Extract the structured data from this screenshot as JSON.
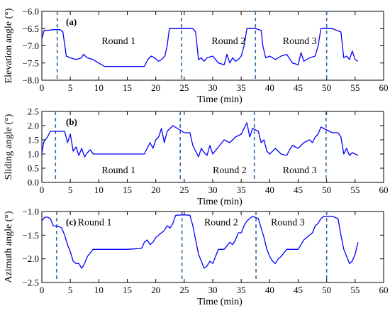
{
  "chart_data": [
    {
      "type": "line",
      "panel_label": "(a)",
      "xlabel": "Time (min)",
      "ylabel": "Elevation angle (°)",
      "xlim": [
        0,
        60
      ],
      "ylim": [
        -8.0,
        -6.0
      ],
      "xticks": [
        0,
        5,
        10,
        15,
        20,
        25,
        30,
        35,
        40,
        45,
        50,
        55,
        60
      ],
      "yticks": [
        -8.0,
        -7.5,
        -7.0,
        -6.5,
        -6.0
      ],
      "ytick_labels": [
        "−8.0",
        "−7.5",
        "−7.0",
        "−6.5",
        "−6.0"
      ],
      "line_color": "#0000ff",
      "marker_color": "#2e6da4",
      "markers_x": [
        2.7,
        24.5,
        37.5,
        50.0
      ],
      "annotations": [
        {
          "text": "Round 1",
          "x": 10.5,
          "y": -6.85
        },
        {
          "text": "Round 2",
          "x": 29.8,
          "y": -6.85
        },
        {
          "text": "Round 3",
          "x": 42.3,
          "y": -6.85
        }
      ],
      "series": [
        {
          "x": [
            0,
            0.4,
            1.2,
            2.0,
            3.2,
            3.7,
            4.3,
            5.0,
            6.0,
            7.0,
            7.3,
            8.0,
            9.0,
            10.0,
            11.0,
            15.0,
            18.0,
            18.6,
            19.2,
            19.8,
            20.5,
            21.0,
            21.6,
            22.0,
            22.4,
            23.5,
            25.0,
            26.5,
            27.0,
            27.5,
            28.0,
            28.5,
            29.0,
            30.0,
            31.0,
            32.0,
            32.5,
            33.0,
            33.5,
            34.0,
            34.5,
            35.0,
            35.5,
            36.0,
            37.5,
            38.5,
            38.8,
            39.3,
            40.0,
            41.0,
            42.0,
            43.0,
            44.0,
            45.0,
            45.5,
            46.0,
            47.0,
            48.0,
            48.5,
            49.0,
            51.0,
            52.5,
            53.0,
            53.5,
            54.0,
            54.5,
            55.0,
            55.5
          ],
          "y": [
            -6.8,
            -6.55,
            -6.55,
            -6.53,
            -6.53,
            -6.6,
            -7.3,
            -7.35,
            -7.4,
            -7.35,
            -7.25,
            -7.35,
            -7.4,
            -7.5,
            -7.6,
            -7.6,
            -7.6,
            -7.4,
            -7.3,
            -7.35,
            -7.45,
            -7.4,
            -7.3,
            -7.0,
            -6.5,
            -6.5,
            -6.5,
            -6.5,
            -6.6,
            -7.4,
            -7.35,
            -7.45,
            -7.35,
            -7.3,
            -7.5,
            -7.55,
            -7.25,
            -7.5,
            -7.35,
            -7.45,
            -7.4,
            -7.3,
            -7.0,
            -6.5,
            -6.5,
            -6.55,
            -7.0,
            -7.35,
            -7.3,
            -7.4,
            -7.3,
            -7.25,
            -7.5,
            -7.55,
            -7.2,
            -7.45,
            -7.35,
            -7.3,
            -7.0,
            -6.5,
            -6.5,
            -6.6,
            -7.35,
            -7.3,
            -7.4,
            -7.15,
            -7.4,
            -7.45
          ]
        }
      ]
    },
    {
      "type": "line",
      "panel_label": "(b)",
      "xlabel": "Time (min)",
      "ylabel": "Sliding angle (°)",
      "xlim": [
        0,
        60
      ],
      "ylim": [
        0.0,
        2.5
      ],
      "xticks": [
        0,
        5,
        10,
        15,
        20,
        25,
        30,
        35,
        40,
        45,
        50,
        55,
        60
      ],
      "yticks": [
        0.0,
        0.5,
        1.0,
        1.5,
        2.0,
        2.5
      ],
      "ytick_labels": [
        "0.0",
        "0.5",
        "1.0",
        "1.5",
        "2.0",
        "2.5"
      ],
      "line_color": "#0000ff",
      "marker_color": "#2e6da4",
      "markers_x": [
        2.4,
        24.3,
        37.3,
        49.9
      ],
      "annotations": [
        {
          "text": "Round 1",
          "x": 10.5,
          "y": 0.45
        },
        {
          "text": "Round 2",
          "x": 30.0,
          "y": 0.45
        },
        {
          "text": "Round 3",
          "x": 42.3,
          "y": 0.45
        }
      ],
      "series": [
        {
          "x": [
            0,
            0.3,
            0.6,
            1.0,
            1.5,
            2.0,
            2.5,
            3.0,
            3.5,
            4.0,
            4.5,
            5.0,
            5.5,
            6.0,
            6.5,
            7.0,
            7.5,
            8.0,
            8.5,
            9.0,
            10.0,
            15.0,
            18.0,
            18.5,
            19.0,
            19.5,
            20.0,
            20.5,
            21.0,
            21.5,
            22.0,
            22.5,
            23.0,
            25.0,
            26.0,
            26.5,
            27.0,
            27.5,
            28.0,
            28.5,
            29.0,
            29.5,
            30.0,
            31.0,
            32.0,
            33.0,
            34.0,
            35.0,
            35.5,
            36.0,
            36.5,
            37.0,
            38.0,
            38.5,
            39.0,
            39.5,
            40.0,
            41.0,
            42.0,
            43.0,
            43.5,
            44.0,
            45.0,
            46.0,
            47.0,
            47.5,
            48.0,
            48.5,
            49.0,
            51.0,
            52.0,
            52.5,
            53.0,
            53.5,
            54.0,
            54.5,
            55.0,
            55.5
          ],
          "y": [
            1.0,
            1.4,
            1.5,
            1.6,
            1.8,
            1.8,
            1.8,
            1.8,
            1.8,
            1.8,
            1.4,
            1.7,
            1.1,
            1.25,
            0.95,
            1.2,
            0.9,
            1.05,
            1.15,
            1.0,
            1.0,
            1.0,
            1.0,
            1.2,
            1.4,
            1.2,
            1.5,
            1.6,
            1.9,
            1.4,
            1.8,
            1.9,
            2.0,
            1.75,
            1.75,
            1.3,
            1.1,
            0.9,
            1.2,
            1.05,
            0.95,
            1.3,
            1.0,
            1.25,
            1.5,
            1.4,
            1.6,
            1.7,
            1.9,
            2.1,
            1.6,
            1.9,
            1.8,
            1.4,
            1.5,
            1.1,
            1.0,
            1.2,
            1.0,
            0.95,
            1.15,
            1.3,
            1.2,
            1.4,
            1.5,
            1.4,
            1.6,
            1.7,
            1.95,
            1.75,
            1.75,
            1.6,
            1.0,
            1.2,
            0.95,
            1.05,
            1.0,
            0.95
          ]
        }
      ]
    },
    {
      "type": "line",
      "panel_label": "(c)",
      "xlabel": "Time (min)",
      "ylabel": "Azimuth angle (°)",
      "xlim": [
        0,
        60
      ],
      "ylim": [
        -2.5,
        -1.0
      ],
      "xticks": [
        0,
        5,
        10,
        15,
        20,
        25,
        30,
        35,
        40,
        45,
        50,
        55,
        60
      ],
      "yticks": [
        -2.5,
        -2.0,
        -1.5,
        -1.0
      ],
      "ytick_labels": [
        "−2.5",
        "−2.0",
        "−1.5",
        "−1.0"
      ],
      "line_color": "#0000ff",
      "marker_color": "#2e6da4",
      "markers_x": [
        2.6,
        24.6,
        37.6,
        50.0
      ],
      "annotations": [
        {
          "text": "Round 1",
          "x": 6.3,
          "y": -1.22
        },
        {
          "text": "Round 2",
          "x": 28.5,
          "y": -1.22
        },
        {
          "text": "Round 3",
          "x": 40.2,
          "y": -1.22
        }
      ],
      "series": [
        {
          "x": [
            0,
            0.5,
            1.0,
            1.5,
            2.0,
            3.0,
            3.5,
            4.0,
            4.5,
            5.0,
            5.5,
            6.0,
            6.5,
            7.0,
            7.5,
            8.0,
            9.0,
            10.0,
            11.0,
            15.0,
            17.5,
            18.0,
            18.5,
            19.0,
            19.5,
            20.0,
            20.5,
            21.0,
            21.5,
            22.0,
            22.5,
            23.0,
            23.5,
            25.0,
            26.0,
            26.5,
            27.0,
            27.5,
            28.0,
            28.5,
            29.0,
            29.5,
            30.0,
            30.5,
            31.0,
            32.0,
            33.0,
            33.5,
            34.0,
            34.5,
            35.0,
            35.5,
            36.0,
            37.0,
            38.0,
            38.5,
            39.0,
            39.5,
            40.0,
            40.5,
            41.0,
            41.5,
            42.0,
            43.0,
            44.0,
            45.0,
            46.0,
            47.0,
            47.5,
            48.0,
            48.5,
            49.0,
            49.5,
            51.0,
            52.0,
            52.5,
            53.0,
            53.5,
            54.0,
            54.5,
            55.0,
            55.5
          ],
          "y": [
            -1.2,
            -1.12,
            -1.12,
            -1.15,
            -1.3,
            -1.32,
            -1.35,
            -1.5,
            -1.7,
            -1.85,
            -2.05,
            -2.1,
            -2.1,
            -2.2,
            -2.1,
            -1.95,
            -1.8,
            -1.8,
            -1.8,
            -1.8,
            -1.78,
            -1.65,
            -1.6,
            -1.7,
            -1.65,
            -1.55,
            -1.5,
            -1.45,
            -1.4,
            -1.3,
            -1.35,
            -1.25,
            -1.08,
            -1.07,
            -1.08,
            -1.3,
            -1.6,
            -1.9,
            -2.05,
            -2.2,
            -2.15,
            -2.05,
            -2.1,
            -1.95,
            -1.8,
            -1.8,
            -1.65,
            -1.7,
            -1.6,
            -1.45,
            -1.45,
            -1.3,
            -1.2,
            -1.1,
            -1.15,
            -1.35,
            -1.55,
            -1.8,
            -1.95,
            -2.05,
            -2.1,
            -2.0,
            -1.95,
            -1.8,
            -1.8,
            -1.8,
            -1.6,
            -1.5,
            -1.45,
            -1.3,
            -1.25,
            -1.15,
            -1.1,
            -1.1,
            -1.15,
            -1.5,
            -1.8,
            -1.95,
            -2.1,
            -2.05,
            -1.9,
            -1.65
          ]
        }
      ]
    }
  ]
}
